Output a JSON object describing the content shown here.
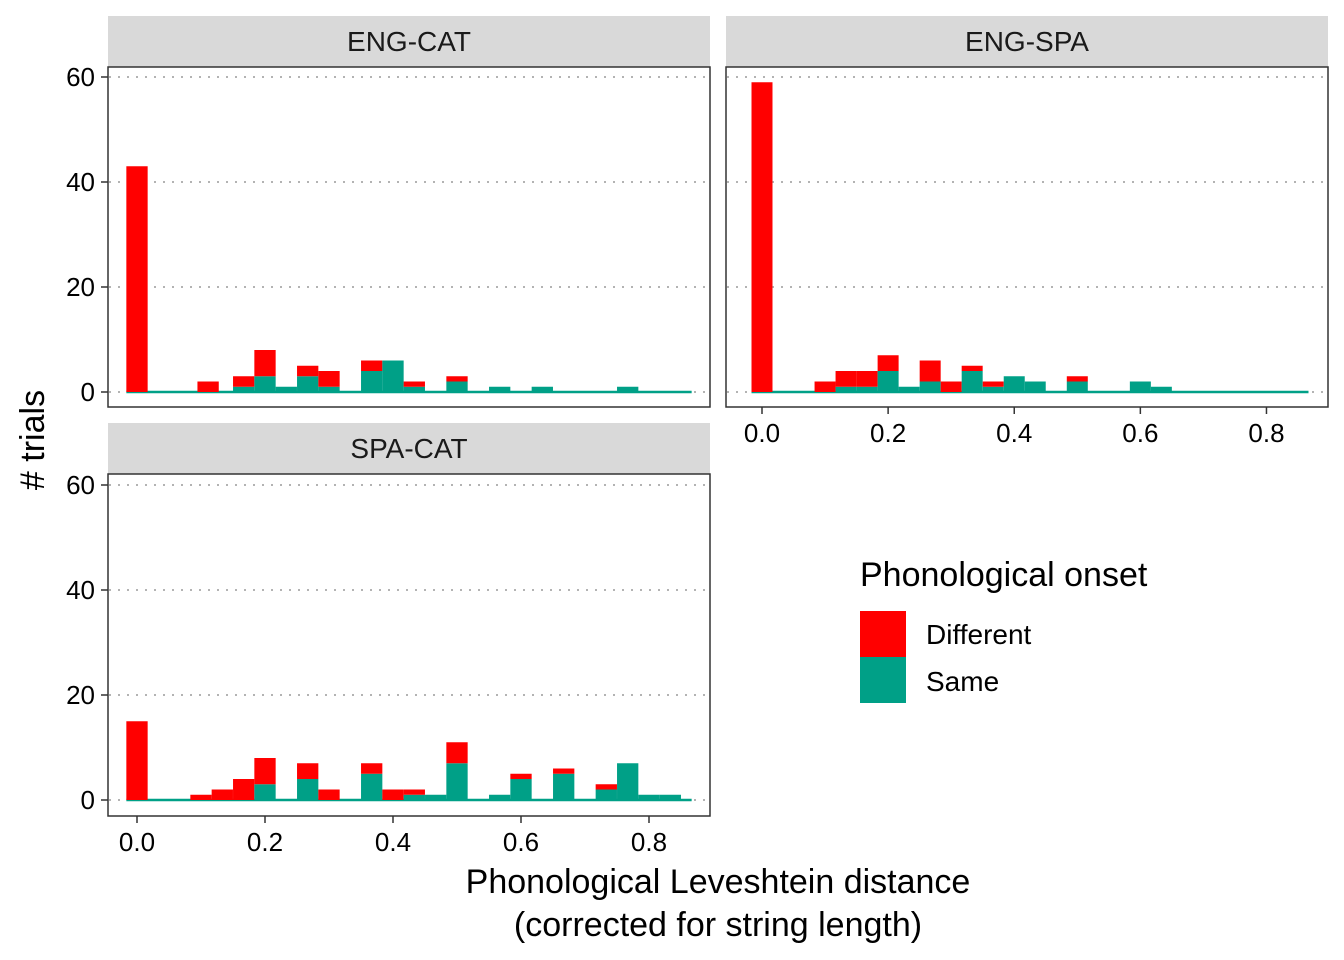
{
  "chart_data": {
    "type": "bar",
    "stacked": true,
    "xlabel_line1": "Phonological Leveshtein distance",
    "xlabel_line2": "(corrected for string length)",
    "ylabel": "# trials",
    "ylim": [
      0,
      60
    ],
    "xlim": [
      0,
      0.85
    ],
    "y_ticks": [
      0,
      20,
      40,
      60
    ],
    "x_ticks": [
      0,
      0.2,
      0.4,
      0.6,
      0.8
    ],
    "x_tick_labels": [
      "0.0",
      "0.2",
      "0.4",
      "0.6",
      "0.8"
    ],
    "bin_width": 0.0333,
    "grid": "horizontal-dotted",
    "legend": {
      "title": "Phonological onset",
      "position": "right-bottom",
      "entries": [
        {
          "label": "Different",
          "color": "#ff0000"
        },
        {
          "label": "Same",
          "color": "#00a087"
        }
      ]
    },
    "panels": [
      {
        "name": "ENG-CAT",
        "bins": [
          {
            "x": 0.0,
            "same": 0,
            "different": 43
          },
          {
            "x": 0.1111,
            "same": 0,
            "different": 2
          },
          {
            "x": 0.1667,
            "same": 1,
            "different": 2
          },
          {
            "x": 0.2,
            "same": 3,
            "different": 5
          },
          {
            "x": 0.2333,
            "same": 1,
            "different": 0
          },
          {
            "x": 0.2667,
            "same": 3,
            "different": 2
          },
          {
            "x": 0.3,
            "same": 1,
            "different": 3
          },
          {
            "x": 0.3333,
            "same": 0,
            "different": 0
          },
          {
            "x": 0.3667,
            "same": 4,
            "different": 2
          },
          {
            "x": 0.4,
            "same": 6,
            "different": 0
          },
          {
            "x": 0.4333,
            "same": 1,
            "different": 1
          },
          {
            "x": 0.4667,
            "same": 0,
            "different": 0
          },
          {
            "x": 0.5,
            "same": 2,
            "different": 1
          },
          {
            "x": 0.5667,
            "same": 1,
            "different": 0
          },
          {
            "x": 0.6333,
            "same": 1,
            "different": 0
          },
          {
            "x": 0.7667,
            "same": 1,
            "different": 0
          }
        ]
      },
      {
        "name": "ENG-SPA",
        "bins": [
          {
            "x": 0.0,
            "same": 0,
            "different": 59
          },
          {
            "x": 0.1,
            "same": 0,
            "different": 2
          },
          {
            "x": 0.1333,
            "same": 1,
            "different": 3
          },
          {
            "x": 0.1667,
            "same": 1,
            "different": 3
          },
          {
            "x": 0.2,
            "same": 4,
            "different": 3
          },
          {
            "x": 0.2333,
            "same": 1,
            "different": 0
          },
          {
            "x": 0.2667,
            "same": 2,
            "different": 4
          },
          {
            "x": 0.3,
            "same": 0,
            "different": 2
          },
          {
            "x": 0.3333,
            "same": 4,
            "different": 1
          },
          {
            "x": 0.3667,
            "same": 1,
            "different": 1
          },
          {
            "x": 0.4,
            "same": 3,
            "different": 0
          },
          {
            "x": 0.4333,
            "same": 2,
            "different": 0
          },
          {
            "x": 0.5,
            "same": 2,
            "different": 1
          },
          {
            "x": 0.6,
            "same": 2,
            "different": 0
          },
          {
            "x": 0.6333,
            "same": 1,
            "different": 0
          }
        ]
      },
      {
        "name": "SPA-CAT",
        "bins": [
          {
            "x": 0.0,
            "same": 0,
            "different": 15
          },
          {
            "x": 0.1,
            "same": 0,
            "different": 1
          },
          {
            "x": 0.1333,
            "same": 0,
            "different": 2
          },
          {
            "x": 0.1667,
            "same": 0,
            "different": 4
          },
          {
            "x": 0.2,
            "same": 3,
            "different": 5
          },
          {
            "x": 0.2667,
            "same": 4,
            "different": 3
          },
          {
            "x": 0.3,
            "same": 0,
            "different": 2
          },
          {
            "x": 0.3667,
            "same": 5,
            "different": 2
          },
          {
            "x": 0.4,
            "same": 0,
            "different": 2
          },
          {
            "x": 0.4333,
            "same": 1,
            "different": 1
          },
          {
            "x": 0.4667,
            "same": 1,
            "different": 0
          },
          {
            "x": 0.5,
            "same": 7,
            "different": 4
          },
          {
            "x": 0.5667,
            "same": 1,
            "different": 0
          },
          {
            "x": 0.6,
            "same": 4,
            "different": 1
          },
          {
            "x": 0.6667,
            "same": 5,
            "different": 1
          },
          {
            "x": 0.7333,
            "same": 2,
            "different": 1
          },
          {
            "x": 0.7667,
            "same": 7,
            "different": 0
          },
          {
            "x": 0.8,
            "same": 1,
            "different": 0
          },
          {
            "x": 0.8333,
            "same": 1,
            "different": 0
          }
        ]
      }
    ]
  }
}
